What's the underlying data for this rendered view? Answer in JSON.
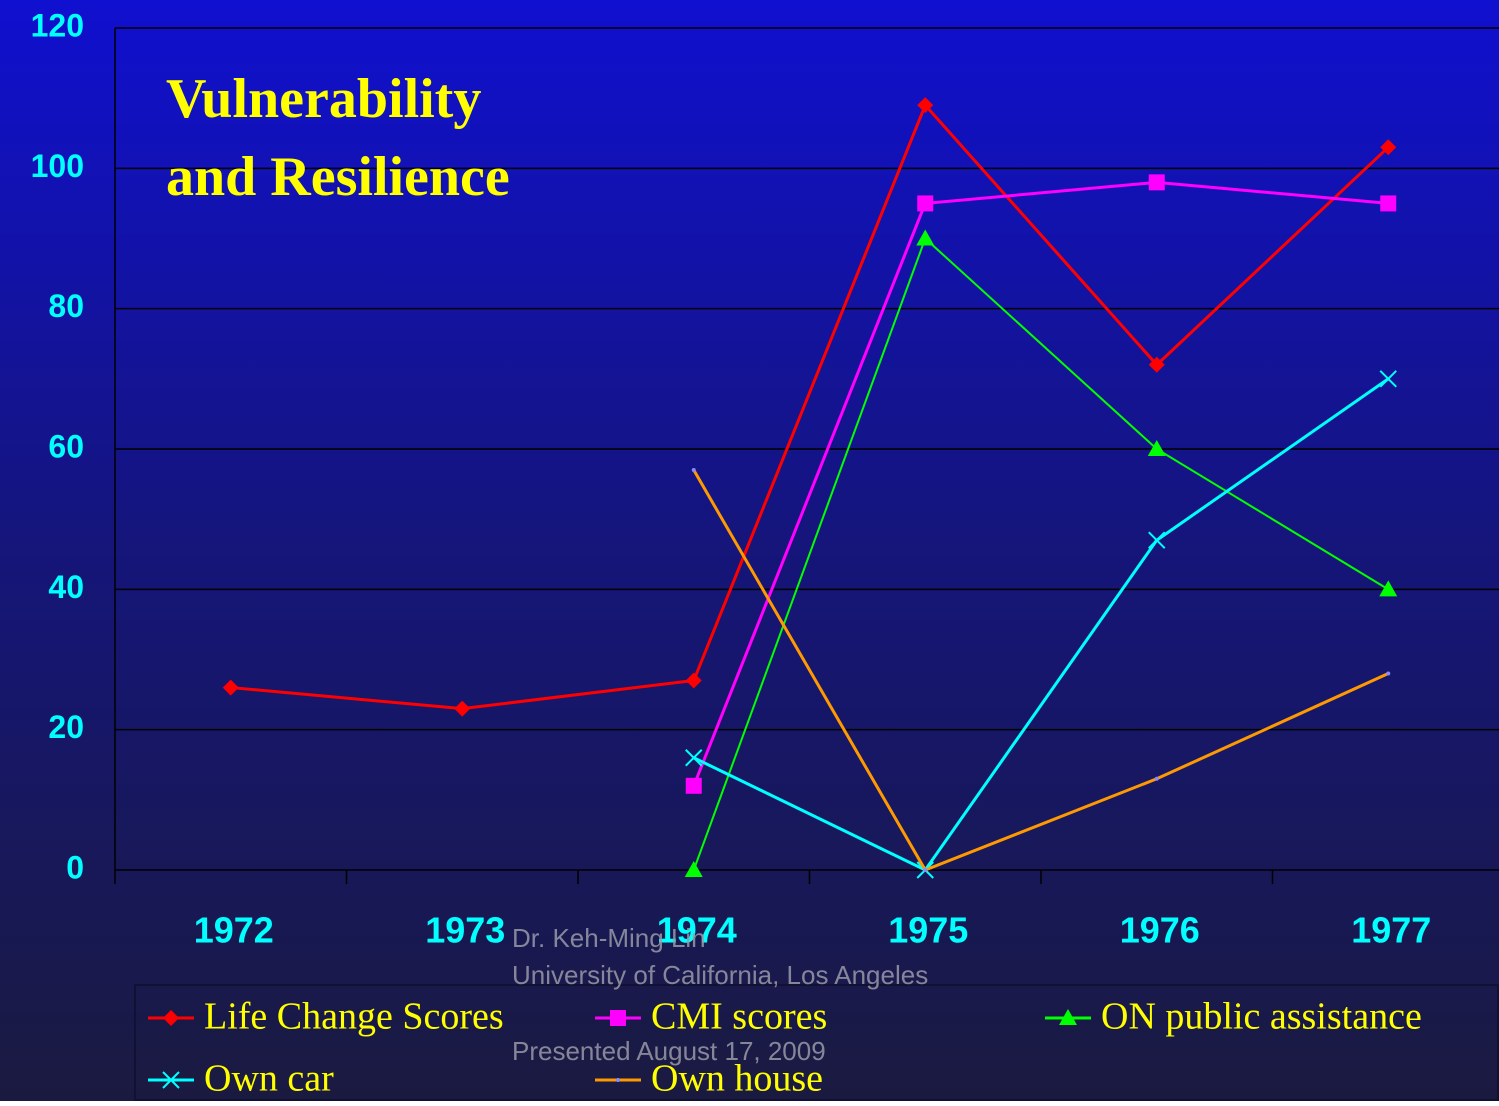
{
  "chart_data": {
    "type": "line",
    "title": [
      "Vulnerability",
      "and Resilience"
    ],
    "categories": [
      "1972",
      "1973",
      "1974",
      "1975",
      "1976",
      "1977"
    ],
    "series": [
      {
        "name": "Life Change Scores",
        "color": "#ff0000",
        "marker": "diamond",
        "values": [
          26,
          23,
          27,
          109,
          72,
          103
        ]
      },
      {
        "name": "CMI scores",
        "color": "#ff00ff",
        "marker": "square",
        "values": [
          null,
          null,
          12,
          95,
          98,
          95
        ]
      },
      {
        "name": "ON public assistance",
        "color": "#00ff00",
        "marker": "triangle",
        "values": [
          null,
          null,
          0,
          90,
          60,
          40
        ]
      },
      {
        "name": "Own car",
        "color": "#00ffff",
        "marker": "x",
        "values": [
          null,
          null,
          16,
          0,
          47,
          70
        ]
      },
      {
        "name": "Own house",
        "color": "#ff9900",
        "marker": "dot",
        "values": [
          null,
          null,
          57,
          0,
          13,
          28
        ]
      }
    ],
    "ylim": [
      0,
      120
    ],
    "yticks": [
      0,
      20,
      40,
      60,
      80,
      100,
      120
    ],
    "grid": true,
    "legend": "bottom",
    "annotations": [
      "Dr. Keh-Ming Lin",
      "University of California, Los Angeles",
      "Presented August 17, 2009"
    ]
  }
}
